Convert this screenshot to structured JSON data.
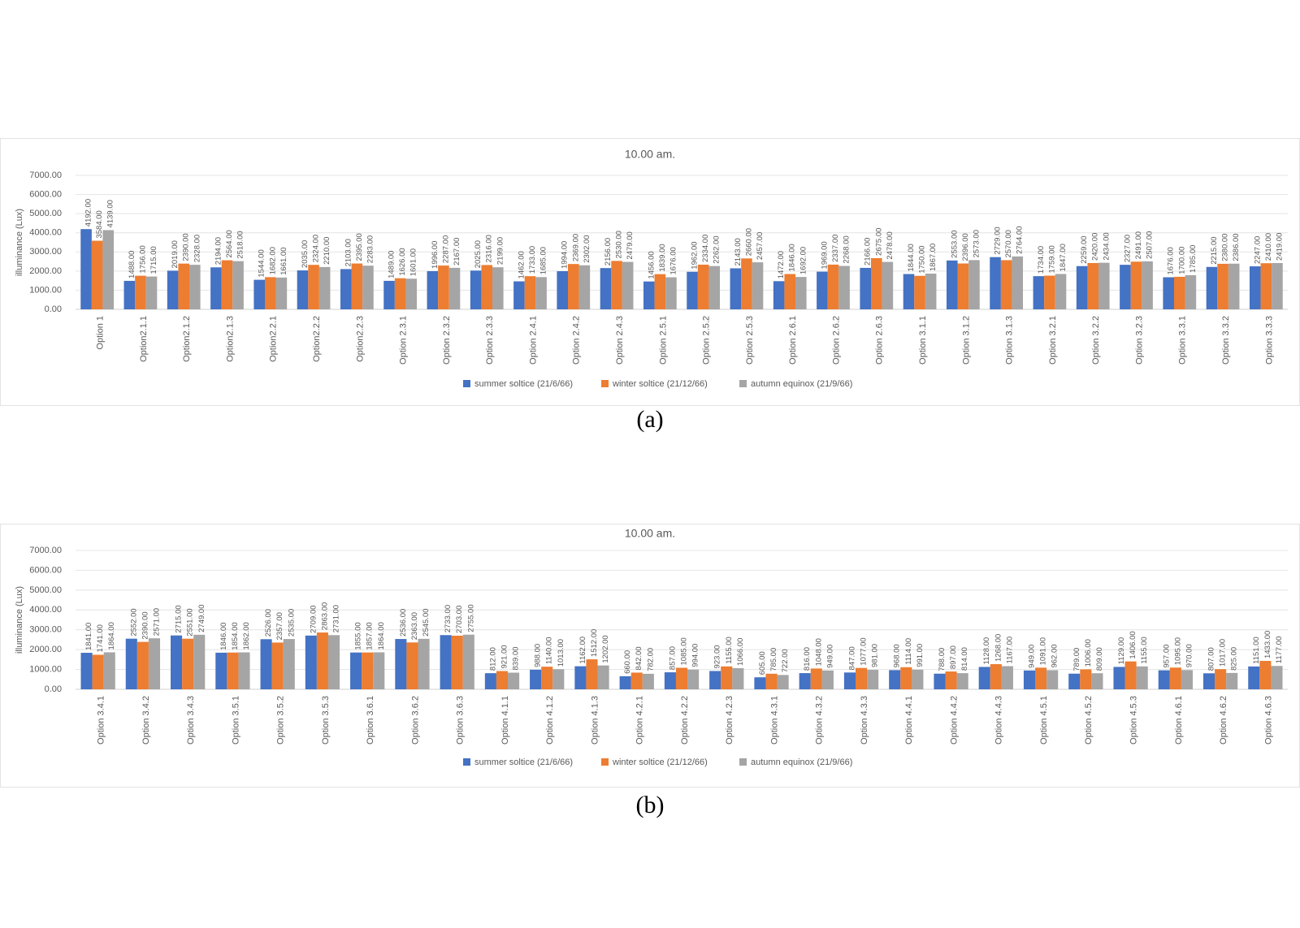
{
  "panels": [
    {
      "caption": "(a)",
      "chart_data": {
        "type": "bar",
        "title": "10.00 am.",
        "xlabel": "",
        "ylabel": "illuminance (Lux)",
        "ylim": [
          0,
          7000
        ],
        "yticks": [
          "0.00",
          "1000.00",
          "2000.00",
          "3000.00",
          "4000.00",
          "5000.00",
          "6000.00",
          "7000.00"
        ],
        "grid": true,
        "legend_position": "bottom",
        "categories": [
          "Option 1",
          "Option2.1.1",
          "Option2.1.2",
          "Option2.1.3",
          "Option2.2.1",
          "Option2.2.2",
          "Option2.2.3",
          "Option 2.3.1",
          "Option 2.3.2",
          "Option 2.3.3",
          "Option 2.4.1",
          "Option 2.4.2",
          "Option 2.4.3",
          "Option 2.5.1",
          "Option 2.5.2",
          "Option 2.5.3",
          "Option 2.6.1",
          "Option 2.6.2",
          "Option 2.6.3",
          "Option 3.1.1",
          "Option 3.1.2",
          "Option 3.1.3",
          "Option 3.2.1",
          "Option 3.2.2",
          "Option 3.2.3",
          "Option 3.3.1",
          "Option 3.3.2",
          "Option 3.3.3"
        ],
        "series": [
          {
            "name": "summer soltice (21/6/66)",
            "color": "#4472C4",
            "values": [
              4192,
              1488,
              2019,
              2194,
              1544,
              2035,
              2103,
              1489,
              1996,
              2025,
              1462,
              1994,
              2156,
              1456,
              1962,
              2143,
              1472,
              1969,
              2166,
              1844,
              2553,
              2729,
              1734,
              2259,
              2327,
              1676,
              2215,
              2247
            ],
            "labels": [
              "4192.00",
              "1488.00",
              "2019.00",
              "2194.00",
              "1544.00",
              "2035.00",
              "2103.00",
              "1489.00",
              "1996.00",
              "2025.00",
              "1462.00",
              "1994.00",
              "2156.00",
              "1456.00",
              "1962.00",
              "2143.00",
              "1472.00",
              "1969.00",
              "2166.00",
              "1844.00",
              "2553.00",
              "2729.00",
              "1734.00",
              "2259.00",
              "2327.00",
              "1676.00",
              "2215.00",
              "2247.00"
            ]
          },
          {
            "name": "winter soltice  (21/12/66)",
            "color": "#ED7D31",
            "values": [
              3584,
              1756,
              2390,
              2564,
              1682,
              2324,
              2395,
              1626,
              2287,
              2316,
              1733,
              2369,
              2530,
              1839,
              2334,
              2660,
              1846,
              2337,
              2675,
              1750,
              2396,
              2570,
              1759,
              2420,
              2491,
              1700,
              2380,
              2410
            ],
            "labels": [
              "3584.00",
              "1756.00",
              "2390.00",
              "2564.00",
              "1682.00",
              "2324.00",
              "2395.00",
              "1626.00",
              "2287.00",
              "2316.00",
              "1733.00",
              "2369.00",
              "2530.00",
              "1839.00",
              "2334.00",
              "2660.00",
              "1846.00",
              "2337.00",
              "2675.00",
              "1750.00",
              "2396.00",
              "2570.00",
              "1759.00",
              "2420.00",
              "2491.00",
              "1700.00",
              "2380.00",
              "2410.00"
            ]
          },
          {
            "name": "autumn equinox  (21/9/66)",
            "color": "#A5A5A5",
            "values": [
              4139,
              1715,
              2328,
              2518,
              1661,
              2210,
              2283,
              1601,
              2167,
              2199,
              1685,
              2302,
              2479,
              1676,
              2262,
              2457,
              1692,
              2268,
              2478,
              1867,
              2573,
              2764,
              1847,
              2434,
              2507,
              1785,
              2386,
              2419
            ],
            "labels": [
              "4139.00",
              "1715.00",
              "2328.00",
              "2518.00",
              "1661.00",
              "2210.00",
              "2283.00",
              "1601.00",
              "2167.00",
              "2199.00",
              "1685.00",
              "2302.00",
              "2479.00",
              "1676.00",
              "2262.00",
              "2457.00",
              "1692.00",
              "2268.00",
              "2478.00",
              "1867.00",
              "2573.00",
              "2764.00",
              "1847.00",
              "2434.00",
              "2507.00",
              "1785.00",
              "2386.00",
              "2419.00"
            ]
          }
        ]
      }
    },
    {
      "caption": "(b)",
      "chart_data": {
        "type": "bar",
        "title": "10.00 am.",
        "xlabel": "",
        "ylabel": "illuminance (Lux)",
        "ylim": [
          0,
          7000
        ],
        "yticks": [
          "0.00",
          "1000.00",
          "2000.00",
          "3000.00",
          "4000.00",
          "5000.00",
          "6000.00",
          "7000.00"
        ],
        "grid": true,
        "legend_position": "bottom",
        "categories": [
          "Option 3.4.1",
          "Option 3.4.2",
          "Option 3.4.3",
          "Option 3.5.1",
          "Option 3.5.2",
          "Option 3.5.3",
          "Option 3.6.1",
          "Option 3.6.2",
          "Option 3.6.3",
          "Option 4.1.1",
          "Option 4.1.2",
          "Option 4.1.3",
          "Option 4.2.1",
          "Option 4.2.2",
          "Option 4.2.3",
          "Option 4.3.1",
          "Option 4.3.2",
          "Option 4.3.3",
          "Option 4.4.1",
          "Option 4.4.2",
          "Option 4.4.3",
          "Option 4.5.1",
          "Option 4.5.2",
          "Option 4.5.3",
          "Option 4.6.1",
          "Option 4.6.2",
          "Option 4.6.3"
        ],
        "series": [
          {
            "name": "summer soltice (21/6/66)",
            "color": "#4472C4",
            "values": [
              1841,
              2552,
              2715,
              1846,
              2526,
              2709,
              1855,
              2536,
              2733,
              812,
              988,
              1162,
              660,
              857,
              923,
              605,
              816,
              847,
              968,
              788,
              1128,
              949,
              789,
              1129,
              957,
              807,
              1151
            ],
            "labels": [
              "1841.00",
              "2552.00",
              "2715.00",
              "1846.00",
              "2526.00",
              "2709.00",
              "1855.00",
              "2536.00",
              "2733.00",
              "812.00",
              "988.00",
              "1162.00",
              "660.00",
              "857.00",
              "923.00",
              "605.00",
              "816.00",
              "847.00",
              "968.00",
              "788.00",
              "1128.00",
              "949.00",
              "789.00",
              "1129.00",
              "957.00",
              "807.00",
              "1151.00"
            ]
          },
          {
            "name": "winter soltice  (21/12/66)",
            "color": "#ED7D31",
            "values": [
              1741,
              2390,
              2551,
              1854,
              2357,
              2863,
              1857,
              2363,
              2703,
              921,
              1140,
              1512,
              842,
              1085,
              1155,
              785,
              1048,
              1077,
              1114,
              897,
              1268,
              1091,
              1006,
              1406,
              1095,
              1017,
              1433
            ],
            "labels": [
              "1741.00",
              "2390.00",
              "2551.00",
              "1854.00",
              "2357.00",
              "2863.00",
              "1857.00",
              "2363.00",
              "2703.00",
              "921.00",
              "1140.00",
              "1512.00",
              "842.00",
              "1085.00",
              "1155.00",
              "785.00",
              "1048.00",
              "1077.00",
              "1114.00",
              "897.00",
              "1268.00",
              "1091.00",
              "1006.00",
              "1406.00",
              "1095.00",
              "1017.00",
              "1433.00"
            ]
          },
          {
            "name": "autumn equinox  (21/9/66)",
            "color": "#A5A5A5",
            "values": [
              1864,
              2571,
              2749,
              1862,
              2535,
              2731,
              1864,
              2545,
              2755,
              839,
              1013,
              1202,
              782,
              994,
              1066,
              722,
              949,
              981,
              991,
              814,
              1167,
              962,
              809,
              1155,
              970,
              825,
              1177
            ],
            "labels": [
              "1864.00",
              "2571.00",
              "2749.00",
              "1862.00",
              "2535.00",
              "2731.00",
              "1864.00",
              "2545.00",
              "2755.00",
              "839.00",
              "1013.00",
              "1202.00",
              "782.00",
              "994.00",
              "1066.00",
              "722.00",
              "949.00",
              "981.00",
              "991.00",
              "814.00",
              "1167.00",
              "962.00",
              "809.00",
              "1155.00",
              "970.00",
              "825.00",
              "1177.00"
            ]
          }
        ]
      }
    }
  ]
}
